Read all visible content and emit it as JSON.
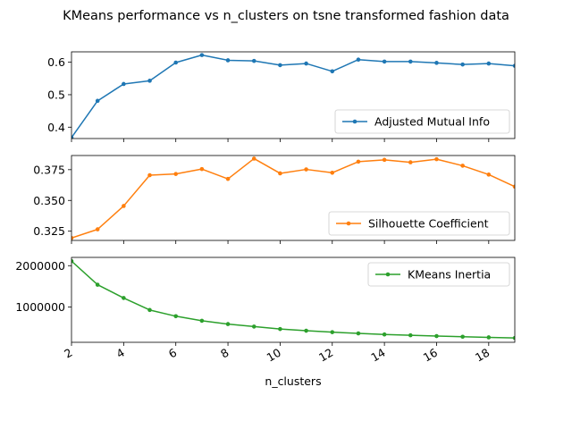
{
  "figure": {
    "title": "KMeans performance vs n_clusters on tsne transformed fashion data",
    "xlabel": "n_clusters"
  },
  "chart_data": [
    {
      "type": "line",
      "x": [
        2,
        3,
        4,
        5,
        6,
        7,
        8,
        9,
        10,
        11,
        12,
        13,
        14,
        15,
        16,
        17,
        18,
        19
      ],
      "xlim": [
        2,
        19
      ],
      "xticks": [
        "2",
        "4",
        "6",
        "8",
        "10",
        "12",
        "14",
        "16",
        "18"
      ],
      "ylim": [
        0.365,
        0.632
      ],
      "yticks": [
        "0.4",
        "0.5",
        "0.6"
      ],
      "legend_position": "lower-right",
      "series": [
        {
          "name": "Adjusted Mutual Info",
          "color": "#1f77b4",
          "values": [
            0.368,
            0.481,
            0.533,
            0.543,
            0.599,
            0.622,
            0.606,
            0.604,
            0.591,
            0.596,
            0.572,
            0.608,
            0.602,
            0.602,
            0.598,
            0.593,
            0.596,
            0.589
          ]
        }
      ]
    },
    {
      "type": "line",
      "x": [
        2,
        3,
        4,
        5,
        6,
        7,
        8,
        9,
        10,
        11,
        12,
        13,
        14,
        15,
        16,
        17,
        18,
        19
      ],
      "xlim": [
        2,
        19
      ],
      "xticks": [
        "2",
        "4",
        "6",
        "8",
        "10",
        "12",
        "14",
        "16",
        "18"
      ],
      "ylim": [
        0.3175,
        0.3865
      ],
      "yticks": [
        "0.325",
        "0.350",
        "0.375"
      ],
      "legend_position": "lower-right",
      "series": [
        {
          "name": "Silhouette Coefficient",
          "color": "#ff7f0e",
          "values": [
            0.3195,
            0.3265,
            0.3455,
            0.3705,
            0.3715,
            0.3755,
            0.3675,
            0.384,
            0.372,
            0.3752,
            0.3725,
            0.3815,
            0.383,
            0.381,
            0.3835,
            0.3782,
            0.371,
            0.3612
          ]
        }
      ]
    },
    {
      "type": "line",
      "x": [
        2,
        3,
        4,
        5,
        6,
        7,
        8,
        9,
        10,
        11,
        12,
        13,
        14,
        15,
        16,
        17,
        18,
        19
      ],
      "xlim": [
        2,
        19
      ],
      "xticks": [
        "2",
        "4",
        "6",
        "8",
        "10",
        "12",
        "14",
        "16",
        "18"
      ],
      "ylim": [
        150000,
        2200000
      ],
      "yticks": [
        "1000000",
        "2000000"
      ],
      "legend_position": "upper-right",
      "series": [
        {
          "name": "KMeans Inertia",
          "color": "#2ca02c",
          "values": [
            2110000,
            1540000,
            1220000,
            930000,
            780000,
            670000,
            590000,
            530000,
            470000,
            430000,
            395000,
            365000,
            340000,
            320000,
            300000,
            285000,
            270000,
            255000
          ]
        }
      ]
    }
  ]
}
